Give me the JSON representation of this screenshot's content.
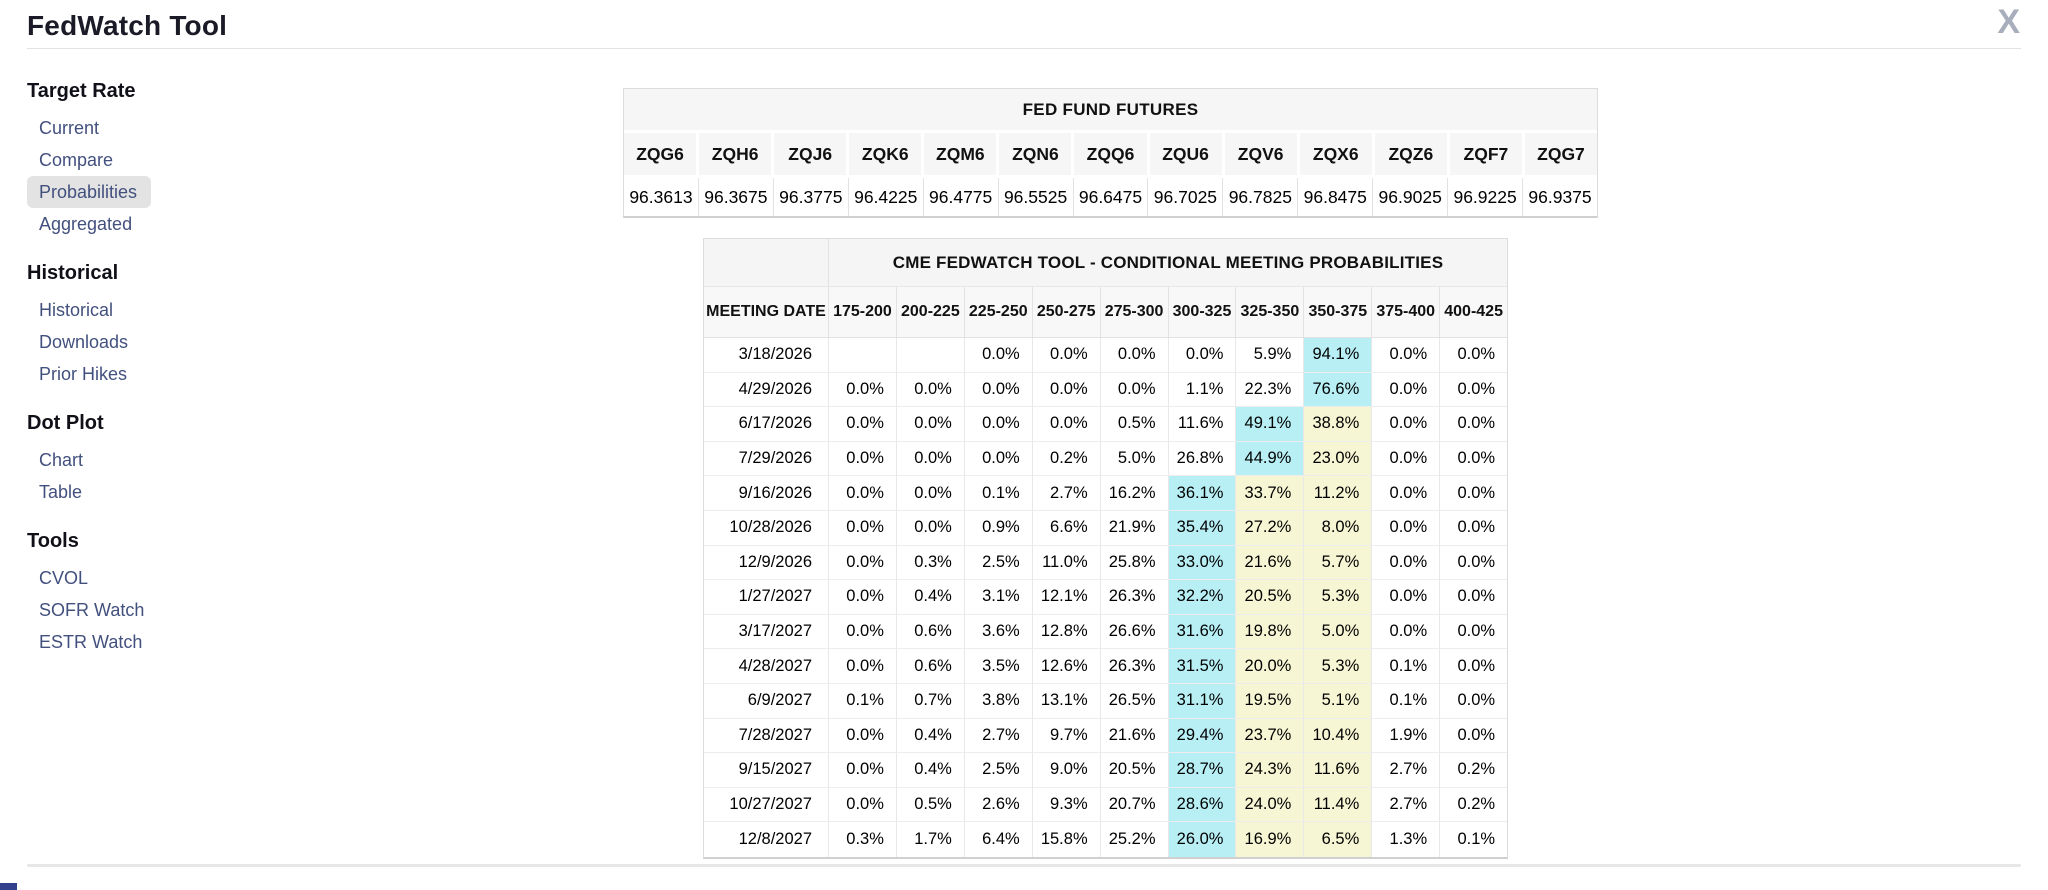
{
  "header": {
    "title": "FedWatch Tool",
    "close_glyph": "X"
  },
  "colors": {
    "cyan_highlight": "#b7eff5",
    "yellow_highlight": "#f6f6d4",
    "link": "#42507e",
    "selected_bg": "#e3e3e3"
  },
  "sidebar": {
    "sections": [
      {
        "title": "Target Rate",
        "items": [
          {
            "label": "Current",
            "selected": false
          },
          {
            "label": "Compare",
            "selected": false
          },
          {
            "label": "Probabilities",
            "selected": true
          },
          {
            "label": "Aggregated",
            "selected": false
          }
        ]
      },
      {
        "title": "Historical",
        "items": [
          {
            "label": "Historical",
            "selected": false
          },
          {
            "label": "Downloads",
            "selected": false
          },
          {
            "label": "Prior Hikes",
            "selected": false
          }
        ]
      },
      {
        "title": "Dot Plot",
        "items": [
          {
            "label": "Chart",
            "selected": false
          },
          {
            "label": "Table",
            "selected": false
          }
        ]
      },
      {
        "title": "Tools",
        "items": [
          {
            "label": "CVOL",
            "selected": false
          },
          {
            "label": "SOFR Watch",
            "selected": false
          },
          {
            "label": "ESTR Watch",
            "selected": false
          }
        ]
      }
    ]
  },
  "futures": {
    "title": "FED FUND FUTURES",
    "tickers": [
      "ZQG6",
      "ZQH6",
      "ZQJ6",
      "ZQK6",
      "ZQM6",
      "ZQN6",
      "ZQQ6",
      "ZQU6",
      "ZQV6",
      "ZQX6",
      "ZQZ6",
      "ZQF7",
      "ZQG7"
    ],
    "prices": [
      "96.3613",
      "96.3675",
      "96.3775",
      "96.4225",
      "96.4775",
      "96.5525",
      "96.6475",
      "96.7025",
      "96.7825",
      "96.8475",
      "96.9025",
      "96.9225",
      "96.9375"
    ]
  },
  "probabilities": {
    "title": "CME FEDWATCH TOOL - CONDITIONAL MEETING PROBABILITIES",
    "date_header": "MEETING DATE",
    "range_headers": [
      "175-200",
      "200-225",
      "225-250",
      "250-275",
      "275-300",
      "300-325",
      "325-350",
      "350-375",
      "375-400",
      "400-425"
    ],
    "rows": [
      {
        "date": "3/18/2026",
        "values": [
          "",
          "",
          "0.0%",
          "0.0%",
          "0.0%",
          "0.0%",
          "5.9%",
          "94.1%",
          "0.0%",
          "0.0%"
        ],
        "highlights": [
          null,
          null,
          null,
          null,
          null,
          null,
          null,
          "cyan",
          null,
          null
        ]
      },
      {
        "date": "4/29/2026",
        "values": [
          "0.0%",
          "0.0%",
          "0.0%",
          "0.0%",
          "0.0%",
          "1.1%",
          "22.3%",
          "76.6%",
          "0.0%",
          "0.0%"
        ],
        "highlights": [
          null,
          null,
          null,
          null,
          null,
          null,
          null,
          "cyan",
          null,
          null
        ]
      },
      {
        "date": "6/17/2026",
        "values": [
          "0.0%",
          "0.0%",
          "0.0%",
          "0.0%",
          "0.5%",
          "11.6%",
          "49.1%",
          "38.8%",
          "0.0%",
          "0.0%"
        ],
        "highlights": [
          null,
          null,
          null,
          null,
          null,
          null,
          "cyan",
          "yellow",
          null,
          null
        ]
      },
      {
        "date": "7/29/2026",
        "values": [
          "0.0%",
          "0.0%",
          "0.0%",
          "0.2%",
          "5.0%",
          "26.8%",
          "44.9%",
          "23.0%",
          "0.0%",
          "0.0%"
        ],
        "highlights": [
          null,
          null,
          null,
          null,
          null,
          null,
          "cyan",
          "yellow",
          null,
          null
        ]
      },
      {
        "date": "9/16/2026",
        "values": [
          "0.0%",
          "0.0%",
          "0.1%",
          "2.7%",
          "16.2%",
          "36.1%",
          "33.7%",
          "11.2%",
          "0.0%",
          "0.0%"
        ],
        "highlights": [
          null,
          null,
          null,
          null,
          null,
          "cyan",
          "yellow",
          "yellow",
          null,
          null
        ]
      },
      {
        "date": "10/28/2026",
        "values": [
          "0.0%",
          "0.0%",
          "0.9%",
          "6.6%",
          "21.9%",
          "35.4%",
          "27.2%",
          "8.0%",
          "0.0%",
          "0.0%"
        ],
        "highlights": [
          null,
          null,
          null,
          null,
          null,
          "cyan",
          "yellow",
          "yellow",
          null,
          null
        ]
      },
      {
        "date": "12/9/2026",
        "values": [
          "0.0%",
          "0.3%",
          "2.5%",
          "11.0%",
          "25.8%",
          "33.0%",
          "21.6%",
          "5.7%",
          "0.0%",
          "0.0%"
        ],
        "highlights": [
          null,
          null,
          null,
          null,
          null,
          "cyan",
          "yellow",
          "yellow",
          null,
          null
        ]
      },
      {
        "date": "1/27/2027",
        "values": [
          "0.0%",
          "0.4%",
          "3.1%",
          "12.1%",
          "26.3%",
          "32.2%",
          "20.5%",
          "5.3%",
          "0.0%",
          "0.0%"
        ],
        "highlights": [
          null,
          null,
          null,
          null,
          null,
          "cyan",
          "yellow",
          "yellow",
          null,
          null
        ]
      },
      {
        "date": "3/17/2027",
        "values": [
          "0.0%",
          "0.6%",
          "3.6%",
          "12.8%",
          "26.6%",
          "31.6%",
          "19.8%",
          "5.0%",
          "0.0%",
          "0.0%"
        ],
        "highlights": [
          null,
          null,
          null,
          null,
          null,
          "cyan",
          "yellow",
          "yellow",
          null,
          null
        ]
      },
      {
        "date": "4/28/2027",
        "values": [
          "0.0%",
          "0.6%",
          "3.5%",
          "12.6%",
          "26.3%",
          "31.5%",
          "20.0%",
          "5.3%",
          "0.1%",
          "0.0%"
        ],
        "highlights": [
          null,
          null,
          null,
          null,
          null,
          "cyan",
          "yellow",
          "yellow",
          null,
          null
        ]
      },
      {
        "date": "6/9/2027",
        "values": [
          "0.1%",
          "0.7%",
          "3.8%",
          "13.1%",
          "26.5%",
          "31.1%",
          "19.5%",
          "5.1%",
          "0.1%",
          "0.0%"
        ],
        "highlights": [
          null,
          null,
          null,
          null,
          null,
          "cyan",
          "yellow",
          "yellow",
          null,
          null
        ]
      },
      {
        "date": "7/28/2027",
        "values": [
          "0.0%",
          "0.4%",
          "2.7%",
          "9.7%",
          "21.6%",
          "29.4%",
          "23.7%",
          "10.4%",
          "1.9%",
          "0.0%"
        ],
        "highlights": [
          null,
          null,
          null,
          null,
          null,
          "cyan",
          "yellow",
          "yellow",
          null,
          null
        ]
      },
      {
        "date": "9/15/2027",
        "values": [
          "0.0%",
          "0.4%",
          "2.5%",
          "9.0%",
          "20.5%",
          "28.7%",
          "24.3%",
          "11.6%",
          "2.7%",
          "0.2%"
        ],
        "highlights": [
          null,
          null,
          null,
          null,
          null,
          "cyan",
          "yellow",
          "yellow",
          null,
          null
        ]
      },
      {
        "date": "10/27/2027",
        "values": [
          "0.0%",
          "0.5%",
          "2.6%",
          "9.3%",
          "20.7%",
          "28.6%",
          "24.0%",
          "11.4%",
          "2.7%",
          "0.2%"
        ],
        "highlights": [
          null,
          null,
          null,
          null,
          null,
          "cyan",
          "yellow",
          "yellow",
          null,
          null
        ]
      },
      {
        "date": "12/8/2027",
        "values": [
          "0.3%",
          "1.7%",
          "6.4%",
          "15.8%",
          "25.2%",
          "26.0%",
          "16.9%",
          "6.5%",
          "1.3%",
          "0.1%"
        ],
        "highlights": [
          null,
          null,
          null,
          null,
          null,
          "cyan",
          "yellow",
          "yellow",
          null,
          null
        ]
      }
    ]
  }
}
